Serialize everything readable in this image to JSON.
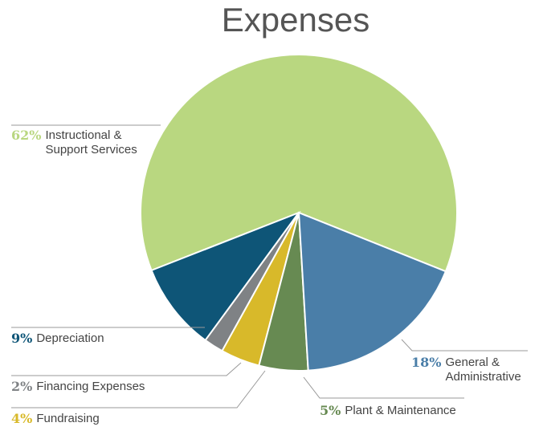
{
  "chart_data": {
    "type": "pie",
    "title": "Expenses",
    "categories": [
      "General & Administrative",
      "Plant & Maintenance",
      "Fundraising",
      "Financing Expenses",
      "Depreciation",
      "Instructional & Support Services"
    ],
    "values": [
      18,
      5,
      4,
      2,
      9,
      62
    ],
    "value_labels": [
      "18%",
      "5%",
      "4%",
      "2%",
      "9%",
      "62%"
    ],
    "colors": [
      "#4a7ea8",
      "#678a52",
      "#d8b92a",
      "#7f8285",
      "#0e5577",
      "#b9d780"
    ]
  }
}
